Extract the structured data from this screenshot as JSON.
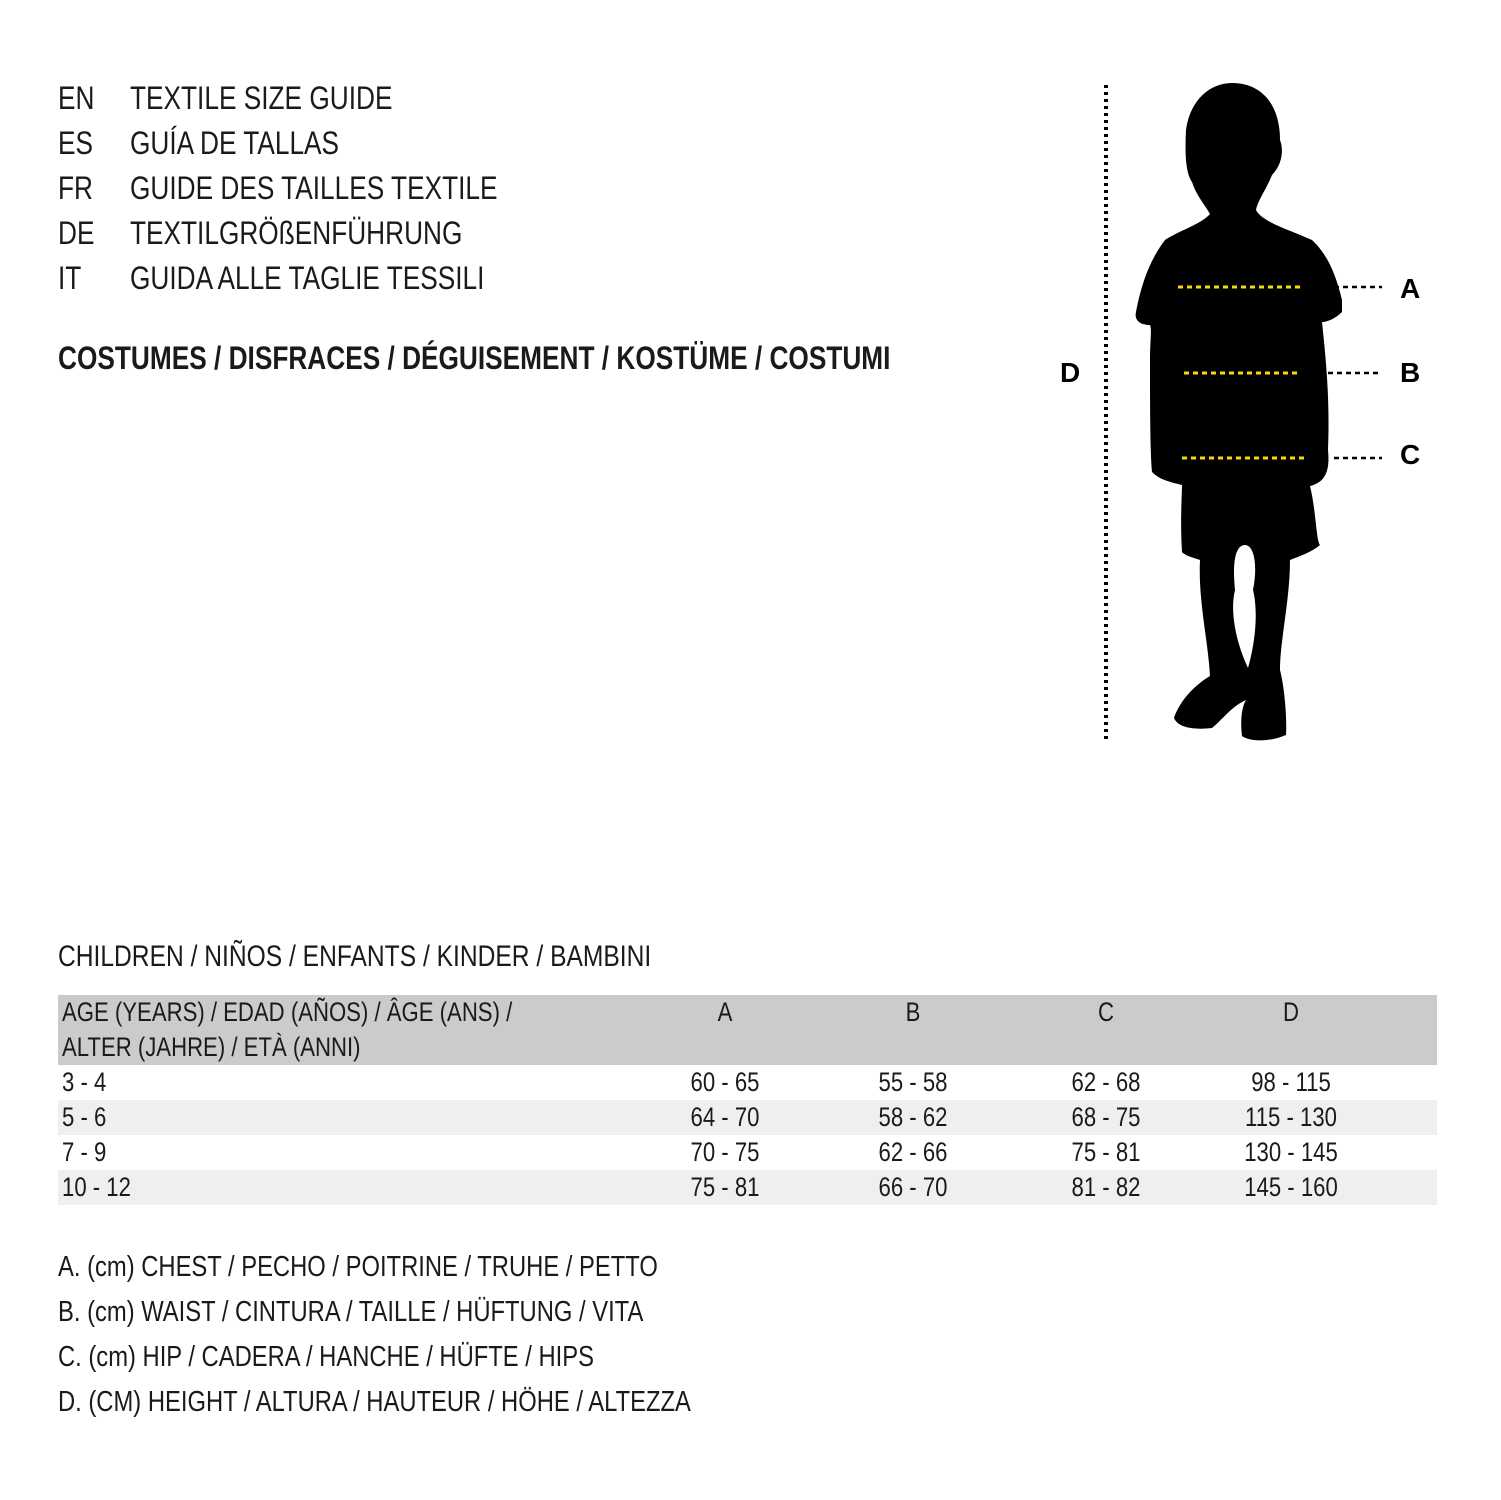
{
  "titles": [
    {
      "code": "EN",
      "text": "TEXTILE SIZE GUIDE"
    },
    {
      "code": "ES",
      "text": "GUÍA DE TALLAS"
    },
    {
      "code": "FR",
      "text": "GUIDE DES TAILLES TEXTILE"
    },
    {
      "code": "DE",
      "text": "TEXTILGRÖßENFÜHRUNG"
    },
    {
      "code": "IT",
      "text": "GUIDA ALLE TAGLIE TESSILI"
    }
  ],
  "category": "COSTUMES / DISFRACES / DÉGUISEMENT / KOSTÜME / COSTUMI",
  "figure": {
    "labels": {
      "a": "A",
      "b": "B",
      "c": "C",
      "d": "D"
    },
    "colors": {
      "silhouette": "#000000",
      "measure_line": "#f5d90a"
    }
  },
  "table": {
    "caption": "CHILDREN / NIÑOS / ENFANTS / KINDER / BAMBINI",
    "headers": [
      "AGE (YEARS) / EDAD (AÑOS) / ÂGE (ANS) /",
      "ALTER (JAHRE) / ETÀ (ANNI)",
      "A",
      "B",
      "C",
      "D"
    ],
    "rows": [
      [
        "3 - 4",
        "60 - 65",
        "55 - 58",
        "62 - 68",
        "98 - 115"
      ],
      [
        "5 - 6",
        "64 - 70",
        "58 - 62",
        "68 - 75",
        "115 - 130"
      ],
      [
        "7 - 9",
        "70 - 75",
        "62 - 66",
        "75 - 81",
        "130 - 145"
      ],
      [
        "10 - 12",
        "75 - 81",
        "66 - 70",
        "81 - 82",
        "145 - 160"
      ]
    ]
  },
  "legend": [
    "A. (cm) CHEST / PECHO / POITRINE / TRUHE / PETTO",
    "B. (cm) WAIST / CINTURA / TAILLE / HÜFTUNG / VITA",
    "C. (cm) HIP / CADERA / HANCHE / HÜFTE / HIPS",
    "D. (CM) HEIGHT / ALTURA / HAUTEUR / HÖHE / ALTEZZA"
  ]
}
